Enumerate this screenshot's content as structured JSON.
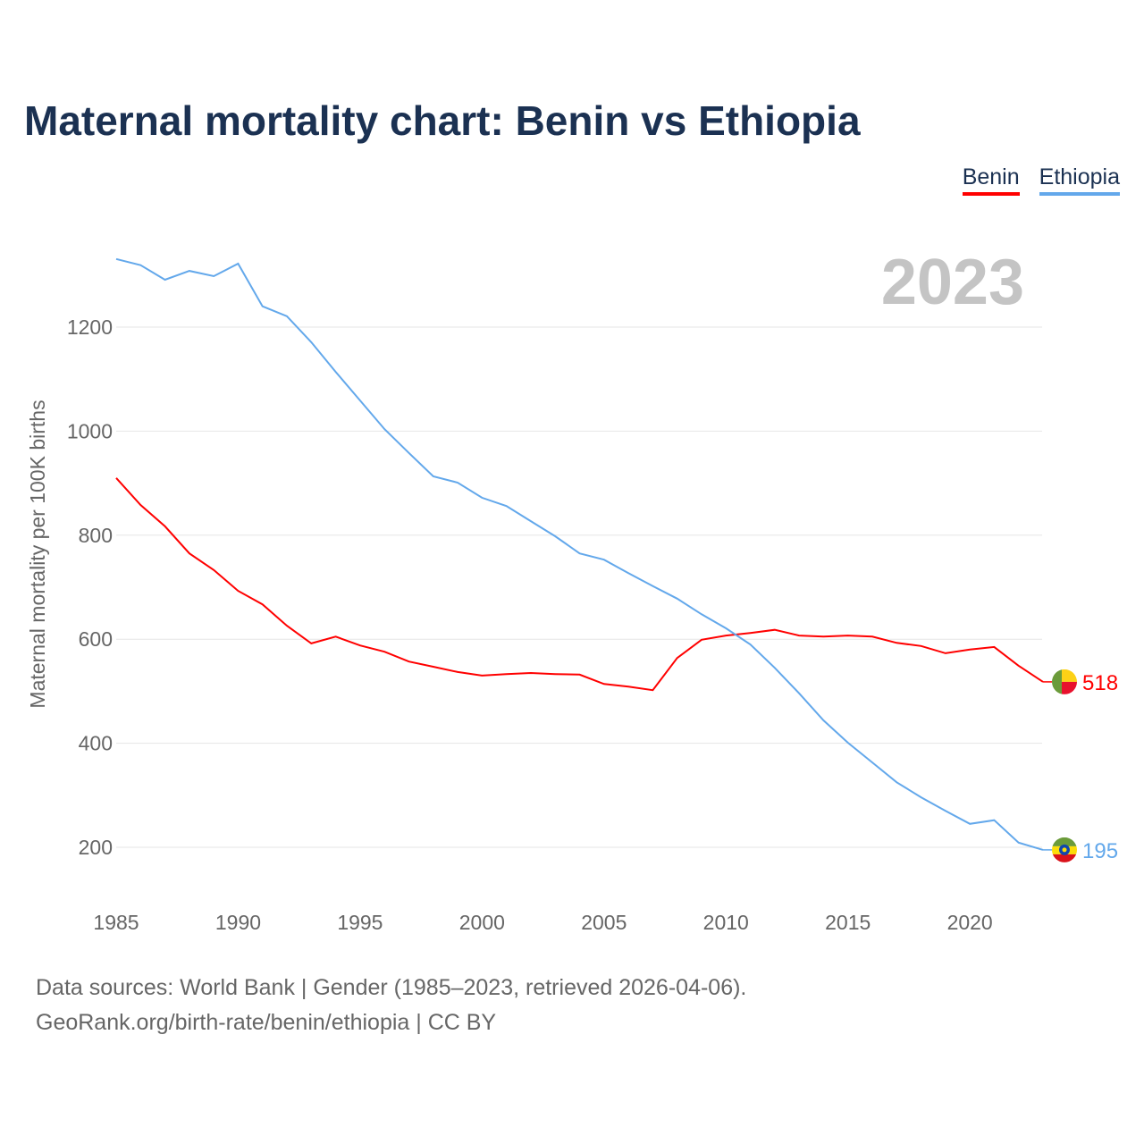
{
  "chart_data": {
    "type": "line",
    "title": "Maternal mortality chart: Benin vs Ethiopia",
    "ylabel": "Maternal mortality per 100K births",
    "xlabel": "",
    "year_label": "2023",
    "xlim": [
      1985,
      2023
    ],
    "ylim": [
      100,
      1350
    ],
    "x_ticks": [
      1985,
      1990,
      1995,
      2000,
      2005,
      2010,
      2015,
      2020
    ],
    "y_ticks": [
      200,
      400,
      600,
      800,
      1000,
      1200
    ],
    "grid": true,
    "legend_position": "top-right",
    "x": [
      1985,
      1986,
      1987,
      1988,
      1989,
      1990,
      1991,
      1992,
      1993,
      1994,
      1995,
      1996,
      1997,
      1998,
      1999,
      2000,
      2001,
      2002,
      2003,
      2004,
      2005,
      2006,
      2007,
      2008,
      2009,
      2010,
      2011,
      2012,
      2013,
      2014,
      2015,
      2016,
      2017,
      2018,
      2019,
      2020,
      2021,
      2022,
      2023
    ],
    "series": [
      {
        "name": "Benin",
        "color": "#ff0000",
        "end_label": "518",
        "values": [
          910,
          858,
          817,
          765,
          733,
          693,
          667,
          626,
          592,
          605,
          588,
          576,
          557,
          547,
          537,
          530,
          533,
          535,
          533,
          532,
          514,
          509,
          502,
          564,
          599,
          607,
          612,
          618,
          607,
          605,
          607,
          605,
          593,
          587,
          573,
          580,
          585,
          549,
          518
        ]
      },
      {
        "name": "Ethiopia",
        "color": "#63a8eb",
        "end_label": "195",
        "values": [
          1331,
          1319,
          1291,
          1308,
          1298,
          1322,
          1240,
          1221,
          1171,
          1114,
          1059,
          1004,
          958,
          913,
          901,
          872,
          856,
          827,
          798,
          765,
          753,
          727,
          702,
          678,
          648,
          621,
          590,
          545,
          496,
          444,
          401,
          363,
          325,
          296,
          270,
          245,
          252,
          209,
          195
        ]
      }
    ]
  },
  "footer": {
    "line1": "Data sources: World Bank | Gender (1985–2023, retrieved 2026-04-06).",
    "line2": "GeoRank.org/birth-rate/benin/ethiopia | CC BY"
  }
}
